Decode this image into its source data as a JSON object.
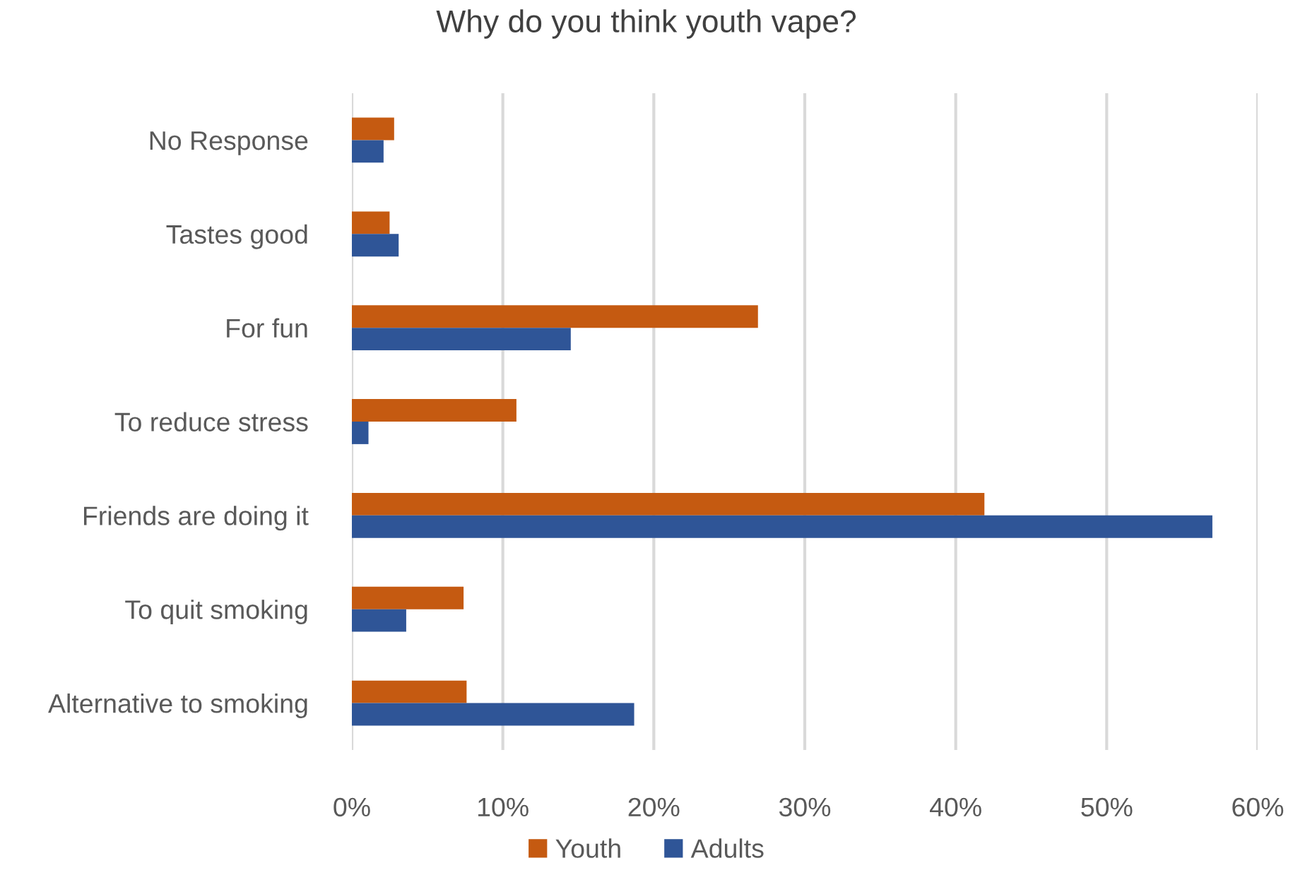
{
  "chart_data": {
    "type": "bar",
    "orientation": "horizontal",
    "title": "Why do you think youth vape?",
    "categories": [
      "No Response",
      "Tastes good",
      "For fun",
      "To reduce stress",
      "Friends are doing it",
      "To quit smoking",
      "Alternative to smoking"
    ],
    "series": [
      {
        "name": "Youth",
        "color": "#c55a11",
        "values": [
          2.8,
          2.5,
          26.9,
          10.9,
          41.9,
          7.4,
          7.6
        ]
      },
      {
        "name": "Adults",
        "color": "#2f5597",
        "values": [
          2.1,
          3.1,
          14.5,
          1.1,
          57.0,
          3.6,
          18.7
        ]
      }
    ],
    "xlim": [
      0,
      60
    ],
    "xticks": [
      {
        "value": 0,
        "label": "0%"
      },
      {
        "value": 10,
        "label": "10%"
      },
      {
        "value": 20,
        "label": "20%"
      },
      {
        "value": 30,
        "label": "30%"
      },
      {
        "value": 40,
        "label": "40%"
      },
      {
        "value": 50,
        "label": "50%"
      },
      {
        "value": 60,
        "label": "60%"
      }
    ],
    "grid": "x",
    "legend": "bottom"
  }
}
